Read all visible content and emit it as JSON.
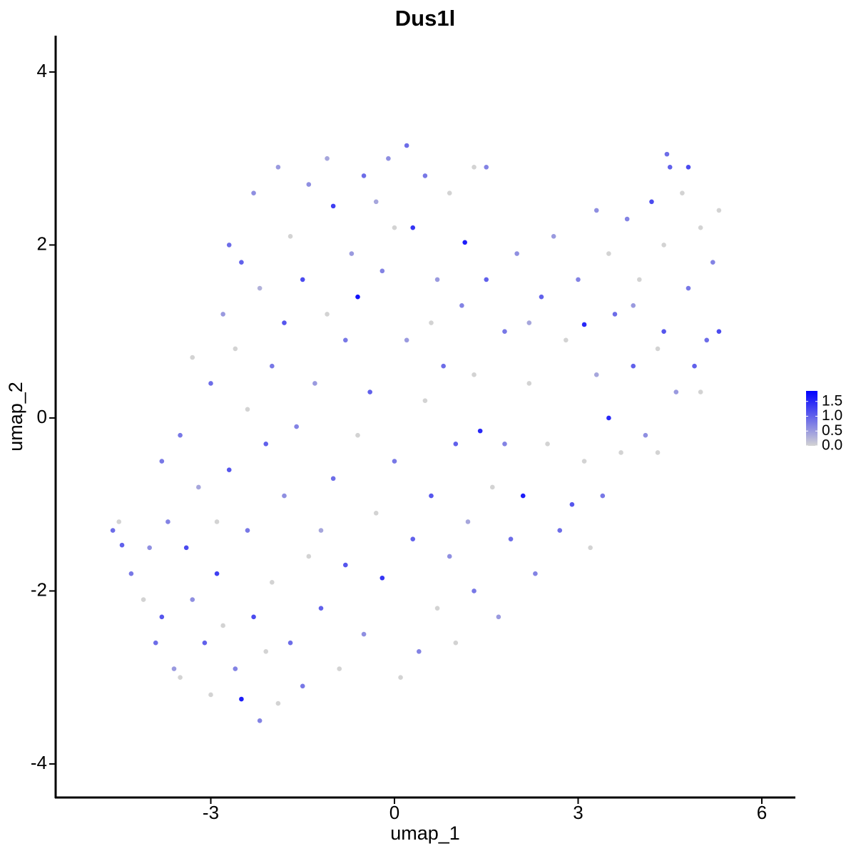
{
  "chart_data": {
    "type": "scatter",
    "title": "Dus1l",
    "xlabel": "umap_1",
    "ylabel": "umap_2",
    "xlim": [
      -5.534,
      6.548
    ],
    "ylim": [
      -4.388,
      4.42
    ],
    "xticks": [
      -3,
      0,
      3,
      6
    ],
    "yticks": [
      -4,
      -2,
      0,
      2,
      4
    ],
    "low_color": "#d3d3d3",
    "high_color": "#0000ff",
    "clim": [
      0,
      1.855
    ],
    "cticks": [
      1.5,
      {
        "value": 1,
        "label": "1.0"
      },
      {
        "value": 0.5,
        "label": "0.5"
      },
      {
        "value": 0,
        "label": "0.0"
      }
    ],
    "x": [
      -4.6,
      -4.5,
      -4.45,
      -4.3,
      -4.1,
      -4.0,
      -3.9,
      -3.8,
      -3.7,
      -3.6,
      -3.5,
      -3.5,
      -3.4,
      -3.3,
      -3.2,
      -3.1,
      -3.0,
      -3.0,
      -2.9,
      -2.8,
      -2.8,
      -2.7,
      -2.7,
      -2.6,
      -2.6,
      -2.5,
      -2.5,
      -2.4,
      -2.4,
      -2.3,
      -2.3,
      -2.2,
      -2.2,
      -2.1,
      -2.0,
      -2.0,
      -1.9,
      -1.9,
      -1.8,
      -1.8,
      -1.7,
      -1.7,
      -1.6,
      -1.5,
      -1.5,
      -1.4,
      -1.4,
      -1.3,
      -1.2,
      -1.1,
      -1.1,
      -1.0,
      -1.0,
      -0.9,
      -0.8,
      -0.8,
      -0.7,
      -0.6,
      -0.6,
      -0.5,
      -0.5,
      -0.4,
      -0.3,
      -0.2,
      -0.2,
      -0.1,
      0.0,
      0.0,
      0.1,
      0.2,
      0.2,
      0.3,
      0.3,
      0.4,
      0.5,
      0.5,
      0.6,
      0.7,
      0.7,
      0.8,
      0.9,
      0.9,
      1.0,
      1.0,
      1.1,
      1.15,
      1.2,
      1.3,
      1.3,
      1.4,
      1.5,
      1.5,
      1.6,
      1.7,
      1.8,
      1.9,
      2.0,
      2.1,
      2.2,
      2.3,
      2.4,
      2.5,
      2.6,
      2.7,
      2.8,
      2.9,
      3.0,
      3.1,
      3.1,
      3.3,
      3.3,
      3.4,
      3.5,
      3.5,
      3.6,
      3.7,
      3.8,
      3.9,
      4.0,
      4.1,
      4.2,
      4.3,
      4.4,
      4.45,
      4.5,
      4.6,
      4.7,
      4.8,
      4.8,
      4.9,
      5.0,
      5.1,
      5.2,
      5.3,
      5.3,
      5.0,
      4.4,
      3.9,
      2.2,
      -3.3,
      -3.8,
      -2.9,
      -1.2,
      0.6,
      1.8,
      -0.3,
      -2.1,
      3.2,
      4.3,
      1.3
    ],
    "y": [
      -1.3,
      -1.2,
      -1.47,
      -1.8,
      -2.1,
      -1.5,
      -2.6,
      -2.3,
      -1.2,
      -2.9,
      -3.0,
      -0.2,
      -1.5,
      -2.1,
      -0.8,
      -2.6,
      -3.2,
      0.4,
      -1.8,
      1.2,
      -2.4,
      2.0,
      -0.6,
      0.8,
      -2.9,
      1.8,
      -3.25,
      -1.3,
      0.1,
      2.6,
      -2.3,
      -3.5,
      1.5,
      -0.3,
      0.6,
      -1.9,
      2.9,
      -3.3,
      1.1,
      -0.9,
      2.1,
      -2.6,
      -0.1,
      1.6,
      -3.1,
      2.7,
      -1.6,
      0.4,
      -2.2,
      3.0,
      1.2,
      -0.7,
      2.45,
      -2.9,
      0.9,
      -1.7,
      1.9,
      -0.2,
      1.4,
      2.8,
      -2.5,
      0.3,
      -1.1,
      1.7,
      -1.85,
      3.0,
      -0.5,
      2.2,
      -3.0,
      3.15,
      0.9,
      -1.4,
      2.2,
      -2.7,
      0.2,
      2.8,
      -0.9,
      1.6,
      -2.2,
      0.6,
      2.6,
      -1.6,
      -0.3,
      -2.6,
      1.3,
      2.03,
      -1.2,
      0.5,
      -2.0,
      -0.15,
      2.9,
      1.6,
      -0.8,
      -2.3,
      1.0,
      -1.4,
      1.9,
      -0.9,
      0.4,
      -1.8,
      1.4,
      -0.3,
      2.1,
      -1.3,
      0.9,
      -1.0,
      1.6,
      -0.5,
      1.08,
      2.4,
      0.5,
      -0.9,
      1.9,
      0.0,
      1.2,
      -0.4,
      2.3,
      0.6,
      1.6,
      -0.2,
      2.5,
      0.8,
      1.0,
      3.05,
      2.9,
      0.3,
      2.6,
      1.5,
      2.9,
      0.6,
      2.2,
      0.9,
      1.8,
      2.4,
      1.0,
      0.3,
      2.0,
      1.3,
      1.1,
      0.7,
      -0.5,
      -1.2,
      -1.3,
      1.1,
      -0.3,
      2.5,
      -2.7,
      -1.5,
      -0.4,
      2.9
    ],
    "values": [
      0.9,
      0,
      1.0,
      0.8,
      0,
      0.6,
      0.9,
      1.1,
      0.7,
      0.5,
      0,
      0.8,
      1.2,
      0.6,
      0.4,
      1.0,
      0,
      0.9,
      1.3,
      0.5,
      0,
      0.9,
      1.1,
      0,
      0.7,
      1.0,
      1.6,
      0.8,
      0,
      0.6,
      1.2,
      0.7,
      0.3,
      1.0,
      0.8,
      0,
      0.5,
      0,
      1.1,
      0.6,
      0,
      0.9,
      0.7,
      1.2,
      0.8,
      0.6,
      0,
      0.5,
      1.0,
      0.4,
      0,
      0.9,
      1.3,
      0,
      0.8,
      1.1,
      0.5,
      0,
      1.7,
      0.9,
      0.6,
      1.0,
      0,
      0.7,
      1.4,
      0.6,
      0.8,
      0,
      0,
      0.9,
      0.5,
      1.0,
      1.4,
      0.7,
      0,
      0.8,
      1.1,
      0.5,
      0,
      0.9,
      0,
      0.6,
      1.0,
      0,
      0.7,
      1.6,
      0.4,
      0,
      0.8,
      1.5,
      0.7,
      1.0,
      0,
      0.5,
      0.8,
      0.9,
      0.6,
      1.6,
      0,
      0.7,
      1.0,
      0,
      0.5,
      0.9,
      0,
      1.1,
      0.7,
      0,
      1.5,
      0.6,
      0.4,
      0.8,
      0,
      1.5,
      0.9,
      0,
      0.7,
      1.0,
      0,
      0.6,
      1.2,
      0,
      1.1,
      0.9,
      1.0,
      0.5,
      0,
      0.8,
      1.2,
      1.0,
      0,
      0.9,
      0.7,
      0,
      1.2,
      0,
      0,
      0.5,
      0.4,
      0,
      0.8,
      0,
      0.4,
      0,
      0.7,
      0.4,
      0,
      0,
      0,
      0
    ]
  }
}
